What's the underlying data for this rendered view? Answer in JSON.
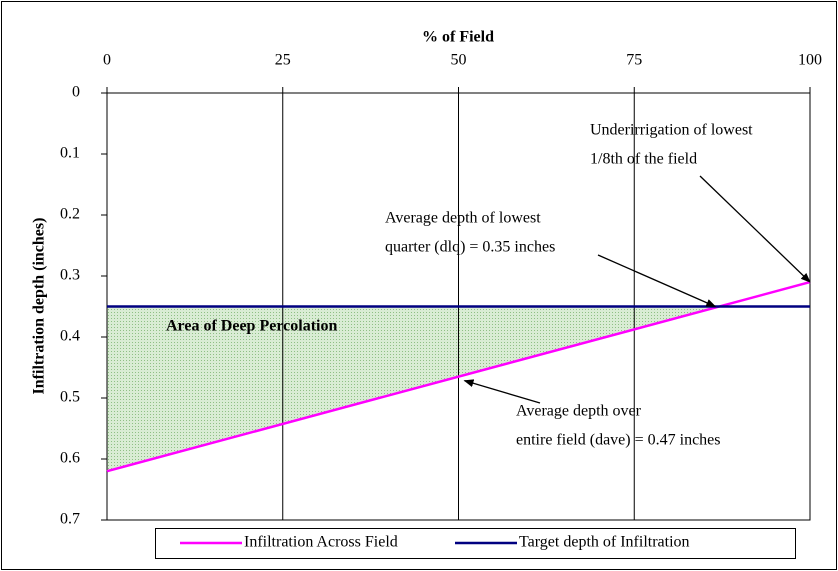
{
  "chart_data": {
    "type": "line",
    "title": "% of Field",
    "y_label": "Infiltration depth (inches)",
    "x": [
      0,
      100
    ],
    "xlim": [
      0,
      100
    ],
    "xticks": [
      0,
      25,
      50,
      75,
      100
    ],
    "ylim": [
      0,
      0.7
    ],
    "yticks": [
      0,
      0.1,
      0.2,
      0.3,
      0.4,
      0.5,
      0.6,
      0.7
    ],
    "y_inverted": true,
    "grid": true,
    "series": [
      {
        "name": "Infiltration Across Field",
        "color": "#ff00ff",
        "values": [
          0.62,
          0.31
        ]
      },
      {
        "name": "Target depth of Infiltration",
        "color": "#000080",
        "values": [
          0.35,
          0.35
        ]
      }
    ],
    "shaded_area": {
      "label": "Area of Deep Percolation",
      "color": "#c4e0bc"
    },
    "annotations": [
      {
        "lines": [
          "Underirrigation of lowest",
          "1/8th of the field"
        ]
      },
      {
        "lines": [
          "Average depth of lowest",
          "quarter  (dlq) = 0.35 inches"
        ]
      },
      {
        "lines": [
          "Average depth over",
          "entire field (dave) = 0.47 inches"
        ]
      }
    ],
    "legend": "bottom"
  }
}
